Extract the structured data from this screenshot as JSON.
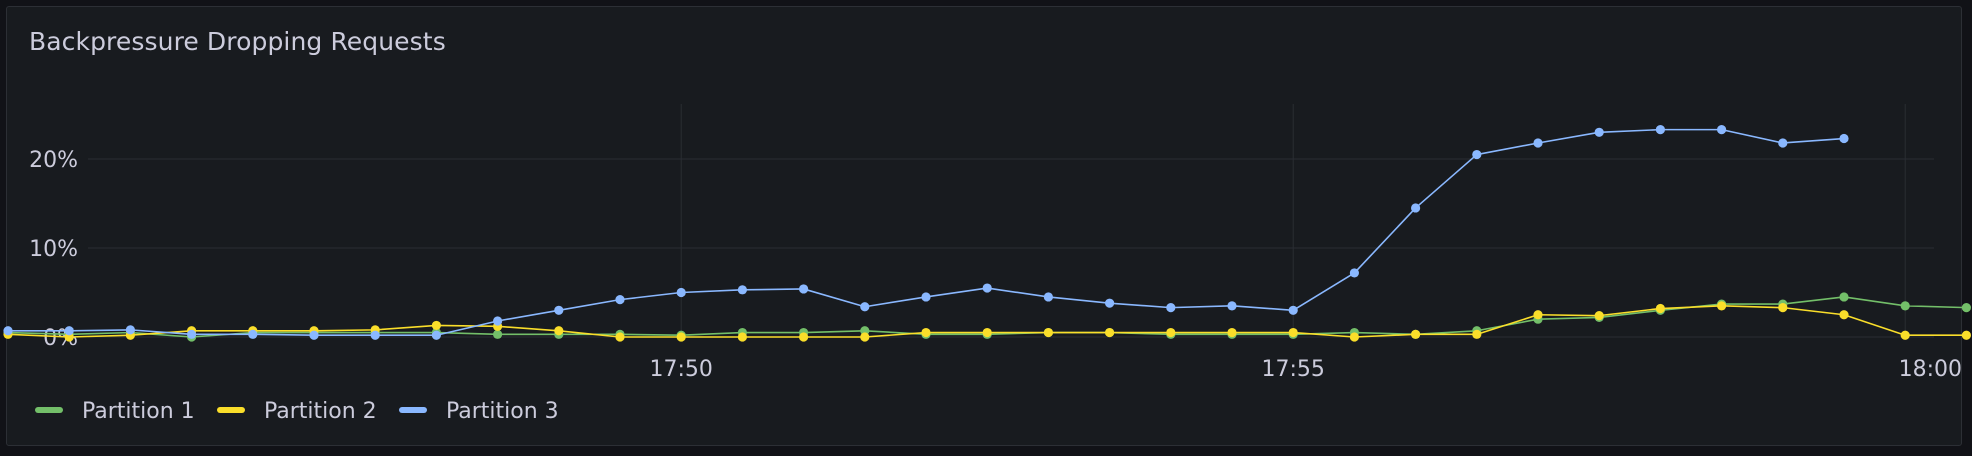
{
  "panel": {
    "title": "Backpressure Dropping Requests"
  },
  "chart_data": {
    "type": "line",
    "title": "Backpressure Dropping Requests",
    "xlabel": "",
    "ylabel": "",
    "ylim": [
      0,
      25
    ],
    "y_ticks": [
      {
        "value": 0,
        "label": "0%"
      },
      {
        "value": 10,
        "label": "10%"
      },
      {
        "value": 20,
        "label": "20%"
      }
    ],
    "x_ticks": [
      {
        "index": 11,
        "label": "17:50"
      },
      {
        "index": 21,
        "label": "17:55"
      },
      {
        "index": 31,
        "label": "18:00"
      }
    ],
    "grid": true,
    "legend_position": "bottom-left",
    "series": [
      {
        "name": "Partition 1",
        "color": "#73bf69",
        "values": [
          0.5,
          0.3,
          0.5,
          0.0,
          0.5,
          0.5,
          0.5,
          0.5,
          0.3,
          0.3,
          0.3,
          0.2,
          0.5,
          0.5,
          0.7,
          0.3,
          0.3,
          0.5,
          0.5,
          0.3,
          0.3,
          0.3,
          0.5,
          0.3,
          0.7,
          2.0,
          2.2,
          3.0,
          3.7,
          3.7,
          4.5,
          3.5,
          3.3
        ]
      },
      {
        "name": "Partition 2",
        "color": "#fade2a",
        "values": [
          0.3,
          0.0,
          0.2,
          0.7,
          0.7,
          0.7,
          0.8,
          1.3,
          1.2,
          0.7,
          0.0,
          0.0,
          0.0,
          0.0,
          0.0,
          0.5,
          0.5,
          0.5,
          0.5,
          0.5,
          0.5,
          0.5,
          0.0,
          0.3,
          0.3,
          2.5,
          2.4,
          3.2,
          3.5,
          3.3,
          2.5,
          0.2,
          0.2
        ]
      },
      {
        "name": "Partition 3",
        "color": "#8ab8ff",
        "values": [
          0.7,
          0.7,
          0.8,
          0.3,
          0.3,
          0.2,
          0.2,
          0.2,
          1.8,
          3.0,
          4.2,
          5.0,
          5.3,
          5.4,
          3.4,
          4.5,
          5.5,
          4.5,
          3.8,
          3.3,
          3.5,
          3.0,
          7.2,
          14.5,
          20.5,
          21.8,
          23.0,
          23.3,
          23.3,
          21.8,
          22.3
        ]
      }
    ]
  }
}
